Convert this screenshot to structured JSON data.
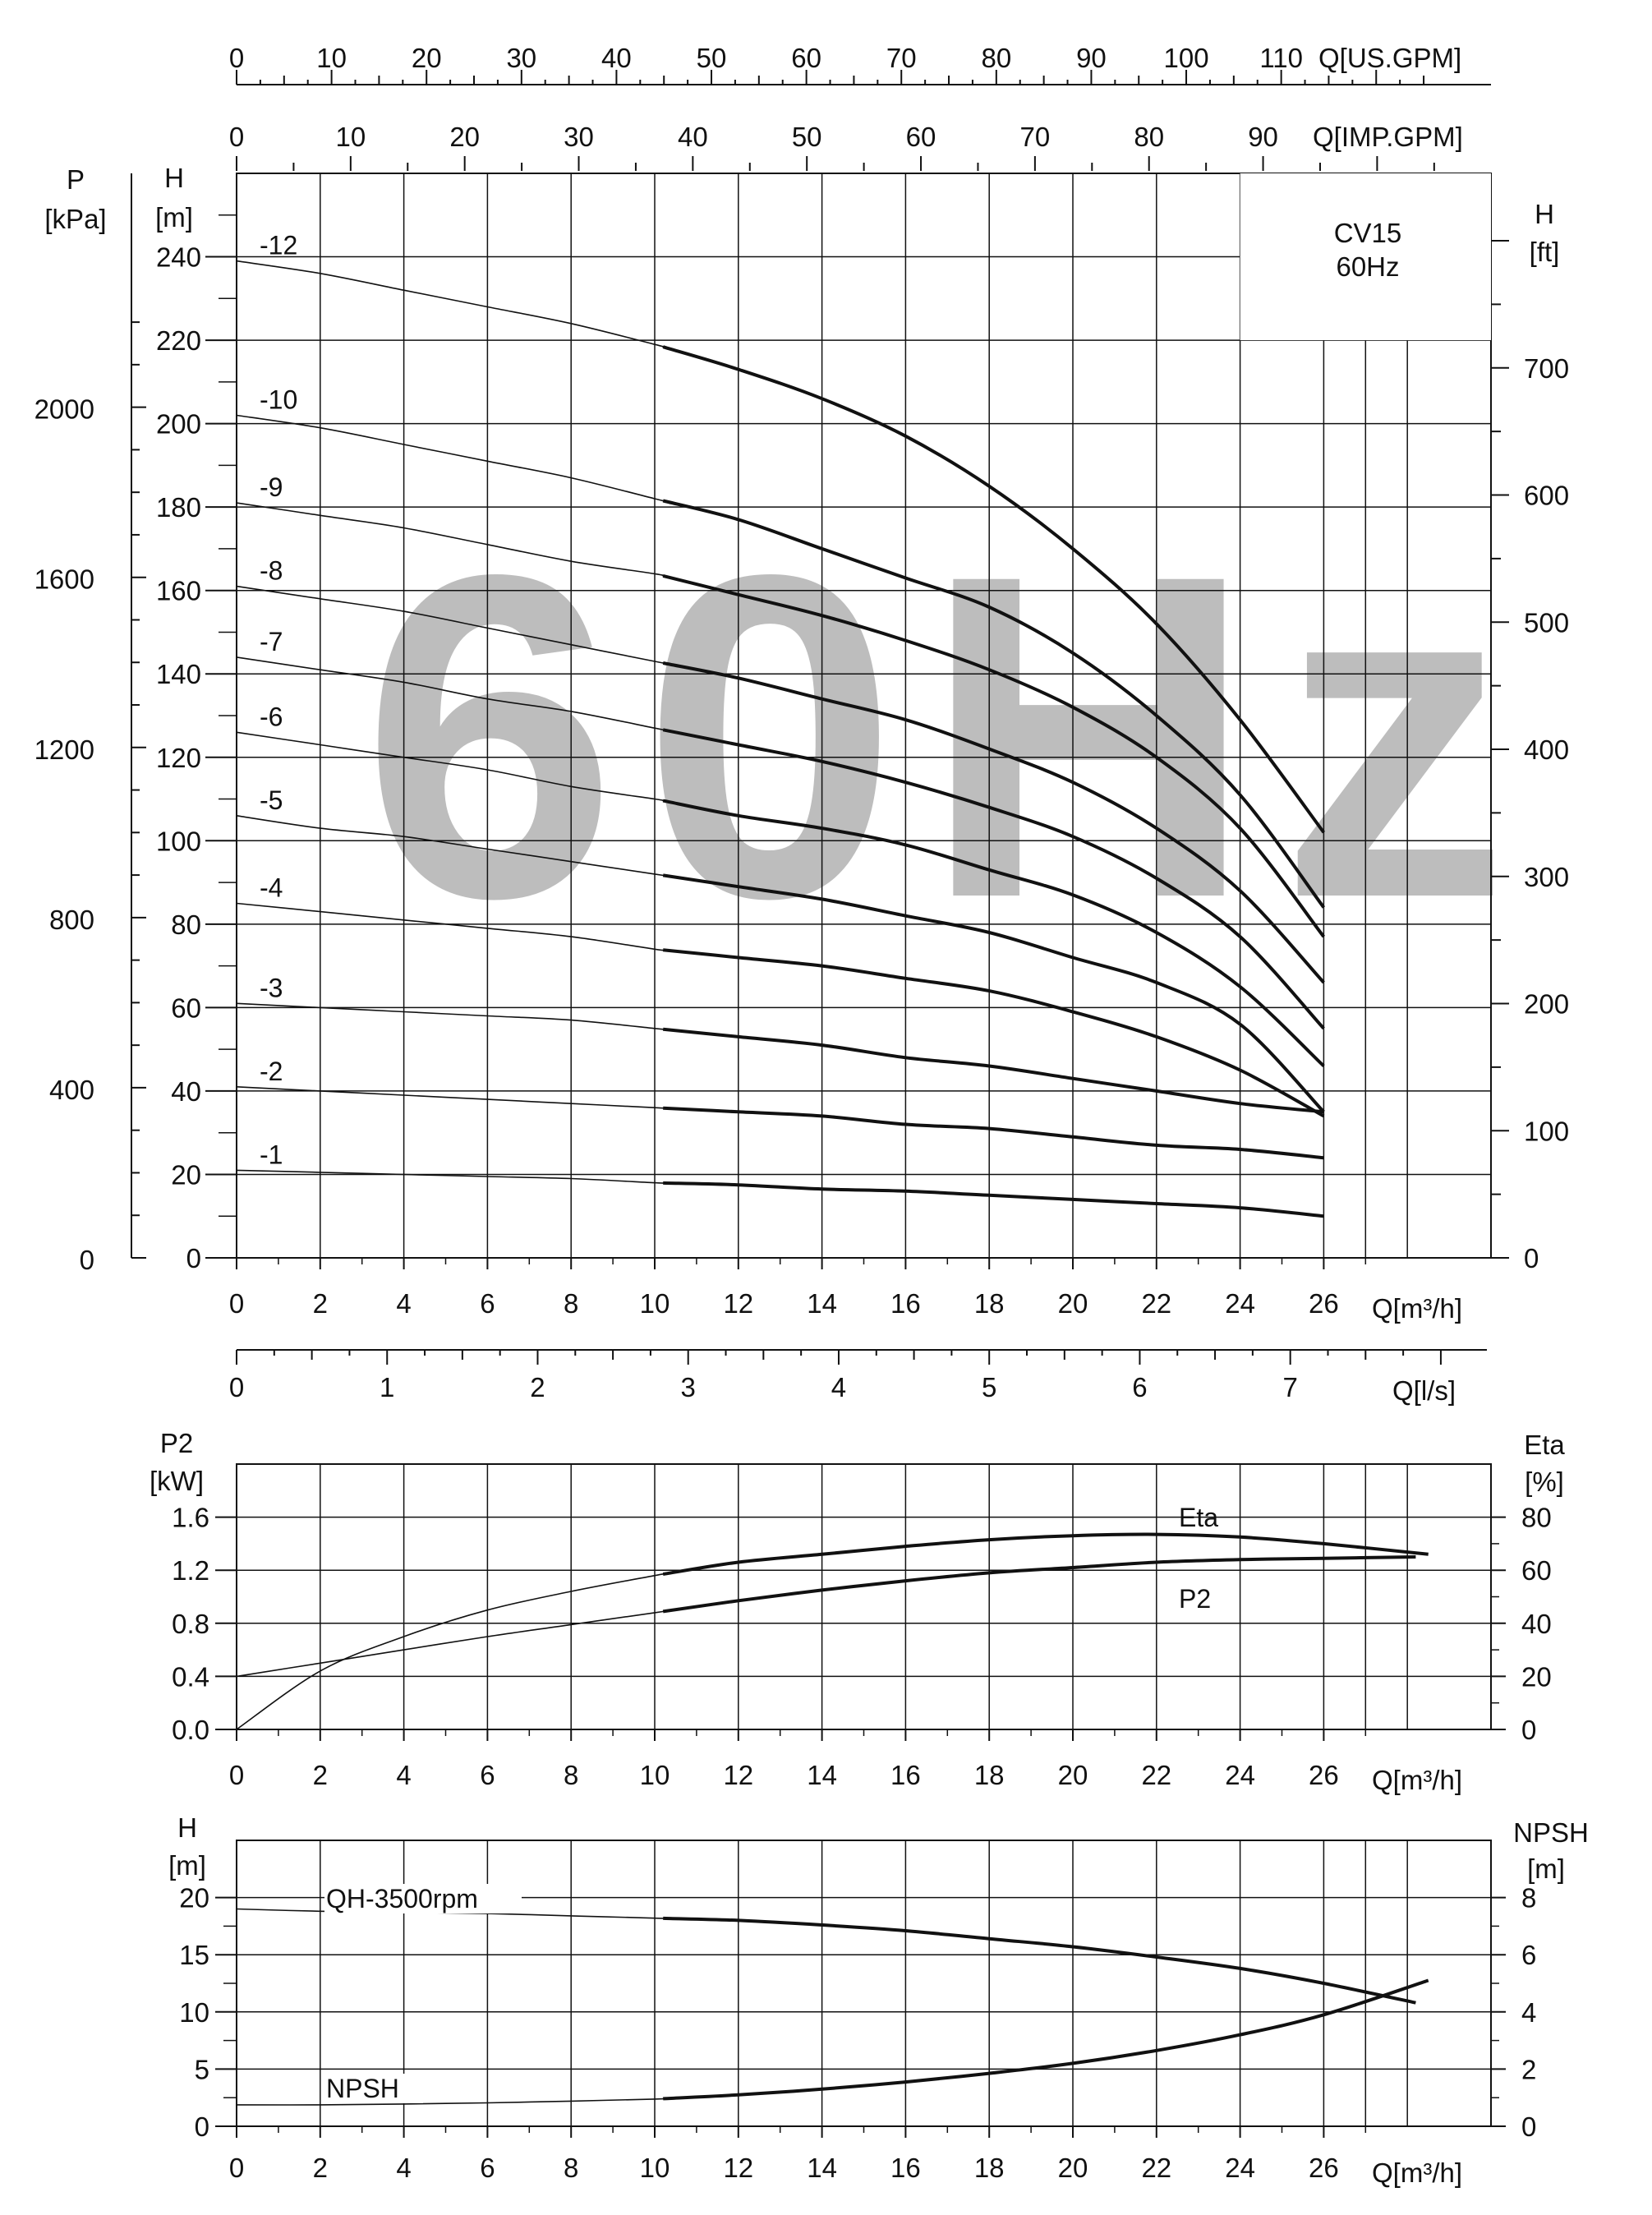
{
  "title_block": {
    "model": "CV15",
    "frequency": "60Hz"
  },
  "watermark": "60Hz",
  "colors": {
    "ink": "#111111",
    "grid": "#111111",
    "watermark": "#bdbdbd",
    "background": "#ffffff"
  },
  "chart_data": [
    {
      "type": "line",
      "name": "QH performance curves",
      "x_unit": "Q[m³/h]",
      "xlim": [
        0,
        30
      ],
      "x_ticks": [
        0,
        2,
        4,
        6,
        8,
        10,
        12,
        14,
        16,
        18,
        20,
        22,
        24,
        26
      ],
      "y_unit_left": "H [m]",
      "ylim": [
        0,
        260
      ],
      "y_ticks": [
        0,
        20,
        40,
        60,
        80,
        100,
        120,
        140,
        160,
        180,
        200,
        220,
        240
      ],
      "pressure_axis": {
        "label": "P [kPa]",
        "ticks": [
          0,
          400,
          800,
          1200,
          1600,
          2000
        ]
      },
      "right_axis": {
        "label": "H [ft]",
        "ticks": [
          0,
          100,
          200,
          300,
          400,
          500,
          600,
          700
        ]
      },
      "top_axis_us": {
        "label": "Q[US.GPM]",
        "ticks": [
          0,
          10,
          20,
          30,
          40,
          50,
          60,
          70,
          80,
          90,
          100,
          110
        ]
      },
      "top_axis_imp": {
        "label": "Q[IMP.GPM]",
        "ticks": [
          0,
          10,
          20,
          30,
          40,
          50,
          60,
          70,
          80,
          90
        ]
      },
      "bottom_axis_ls": {
        "label": "Q[l/s]",
        "ticks": [
          0,
          1,
          2,
          3,
          4,
          5,
          6,
          7
        ]
      },
      "grid": true,
      "series": [
        {
          "name": "-12",
          "x": [
            0,
            2,
            4,
            6,
            8,
            10,
            12,
            14,
            16,
            18,
            20,
            22,
            24,
            26
          ],
          "y": [
            239,
            236,
            232,
            228,
            224,
            219,
            213,
            206,
            197,
            185,
            170,
            152,
            129,
            102
          ]
        },
        {
          "name": "-10",
          "x": [
            0,
            2,
            4,
            6,
            8,
            10,
            12,
            14,
            16,
            18,
            20,
            22,
            24,
            26
          ],
          "y": [
            202,
            199,
            195,
            191,
            187,
            182,
            177,
            170,
            163,
            156,
            145,
            130,
            111,
            84
          ]
        },
        {
          "name": "-9",
          "x": [
            0,
            2,
            4,
            6,
            8,
            10,
            12,
            14,
            16,
            18,
            20,
            22,
            24,
            26
          ],
          "y": [
            181,
            178,
            175,
            171,
            167,
            164,
            159,
            154,
            148,
            141,
            132,
            120,
            103,
            77
          ]
        },
        {
          "name": "-8",
          "x": [
            0,
            2,
            4,
            6,
            8,
            10,
            12,
            14,
            16,
            18,
            20,
            22,
            24,
            26
          ],
          "y": [
            161,
            158,
            155,
            151,
            147,
            143,
            139,
            134,
            129,
            122,
            114,
            103,
            88,
            66
          ]
        },
        {
          "name": "-7",
          "x": [
            0,
            2,
            4,
            6,
            8,
            10,
            12,
            14,
            16,
            18,
            20,
            22,
            24,
            26
          ],
          "y": [
            144,
            141,
            138,
            134,
            131,
            127,
            123,
            119,
            114,
            108,
            101,
            91,
            77,
            55
          ]
        },
        {
          "name": "-6",
          "x": [
            0,
            2,
            4,
            6,
            8,
            10,
            12,
            14,
            16,
            18,
            20,
            22,
            24,
            26
          ],
          "y": [
            126,
            123,
            120,
            117,
            113,
            110,
            106,
            103,
            99,
            93,
            87,
            78,
            65,
            46
          ]
        },
        {
          "name": "-5",
          "x": [
            0,
            2,
            4,
            6,
            8,
            10,
            12,
            14,
            16,
            18,
            20,
            22,
            24,
            26
          ],
          "y": [
            106,
            103,
            101,
            98,
            95,
            92,
            89,
            86,
            82,
            78,
            72,
            66,
            56,
            35
          ]
        },
        {
          "name": "-4",
          "x": [
            0,
            2,
            4,
            6,
            8,
            10,
            12,
            14,
            16,
            18,
            20,
            22,
            24,
            26
          ],
          "y": [
            85,
            83,
            81,
            79,
            77,
            74,
            72,
            70,
            67,
            64,
            59,
            53,
            45,
            34
          ]
        },
        {
          "name": "-3",
          "x": [
            0,
            2,
            4,
            6,
            8,
            10,
            12,
            14,
            16,
            18,
            20,
            22,
            24,
            26
          ],
          "y": [
            61,
            60,
            59,
            58,
            57,
            55,
            53,
            51,
            48,
            46,
            43,
            40,
            37,
            35
          ]
        },
        {
          "name": "-2",
          "x": [
            0,
            2,
            4,
            6,
            8,
            10,
            12,
            14,
            16,
            18,
            20,
            22,
            24,
            26
          ],
          "y": [
            41,
            40,
            39,
            38,
            37,
            36,
            35,
            34,
            32,
            31,
            29,
            27,
            26,
            24
          ]
        },
        {
          "name": "-1",
          "x": [
            0,
            2,
            4,
            6,
            8,
            10,
            12,
            14,
            16,
            18,
            20,
            22,
            24,
            26
          ],
          "y": [
            21,
            20.5,
            20,
            19.5,
            19,
            18,
            17.5,
            16.5,
            16,
            15,
            14,
            13,
            12,
            10
          ]
        }
      ]
    },
    {
      "type": "line",
      "name": "P2 / Eta",
      "x_unit": "Q[m³/h]",
      "xlim": [
        0,
        30
      ],
      "x_ticks": [
        0,
        2,
        4,
        6,
        8,
        10,
        12,
        14,
        16,
        18,
        20,
        22,
        24,
        26
      ],
      "y_unit_left": "P2 [kW]",
      "ylim": [
        0,
        2.0
      ],
      "y_ticks": [
        0.0,
        0.4,
        0.8,
        1.2,
        1.6
      ],
      "y_tick_labels": [
        "0.0",
        "0.4",
        "0.8",
        "1.2",
        "1.6"
      ],
      "y_unit_right": "Eta [%]",
      "right_ticks": [
        0,
        20,
        40,
        60,
        80
      ],
      "grid": true,
      "series": [
        {
          "name": "Eta",
          "axis": "right",
          "x": [
            0,
            2,
            4,
            6,
            8,
            10,
            12,
            14,
            16,
            18,
            20,
            22,
            24,
            26,
            28.5
          ],
          "y": [
            0,
            22,
            35,
            45,
            52,
            58,
            63,
            66,
            69,
            71.5,
            73,
            73.5,
            72.5,
            70,
            66
          ]
        },
        {
          "name": "P2",
          "axis": "left",
          "x": [
            0,
            2,
            4,
            6,
            8,
            10,
            12,
            14,
            16,
            18,
            20,
            22,
            24,
            26,
            28.2
          ],
          "y": [
            0.4,
            0.5,
            0.6,
            0.7,
            0.79,
            0.88,
            0.97,
            1.05,
            1.12,
            1.18,
            1.22,
            1.26,
            1.28,
            1.29,
            1.3
          ]
        }
      ]
    },
    {
      "type": "line",
      "name": "QH-3500rpm / NPSH",
      "x_unit": "Q[m³/h]",
      "xlim": [
        0,
        30
      ],
      "x_ticks": [
        0,
        2,
        4,
        6,
        8,
        10,
        12,
        14,
        16,
        18,
        20,
        22,
        24,
        26
      ],
      "y_unit_left": "H [m]",
      "ylim": [
        0,
        25
      ],
      "y_ticks": [
        0,
        5,
        10,
        15,
        20
      ],
      "y_unit_right": "NPSH [m]",
      "right_ticks": [
        0,
        2,
        4,
        6,
        8
      ],
      "grid": true,
      "series": [
        {
          "name": "QH-3500rpm",
          "axis": "left",
          "x": [
            0,
            2,
            4,
            6,
            8,
            10,
            12,
            14,
            16,
            18,
            20,
            22,
            24,
            26,
            28.2
          ],
          "y": [
            19,
            18.8,
            18.7,
            18.6,
            18.4,
            18.2,
            18.0,
            17.6,
            17.1,
            16.4,
            15.7,
            14.8,
            13.8,
            12.5,
            10.8
          ]
        },
        {
          "name": "NPSH",
          "axis": "right",
          "x": [
            0,
            2,
            4,
            6,
            8,
            10,
            12,
            14,
            16,
            18,
            20,
            22,
            24,
            26,
            28.5
          ],
          "y": [
            0.75,
            0.75,
            0.78,
            0.82,
            0.88,
            0.95,
            1.1,
            1.3,
            1.55,
            1.85,
            2.2,
            2.65,
            3.2,
            3.9,
            5.1
          ]
        }
      ]
    }
  ]
}
